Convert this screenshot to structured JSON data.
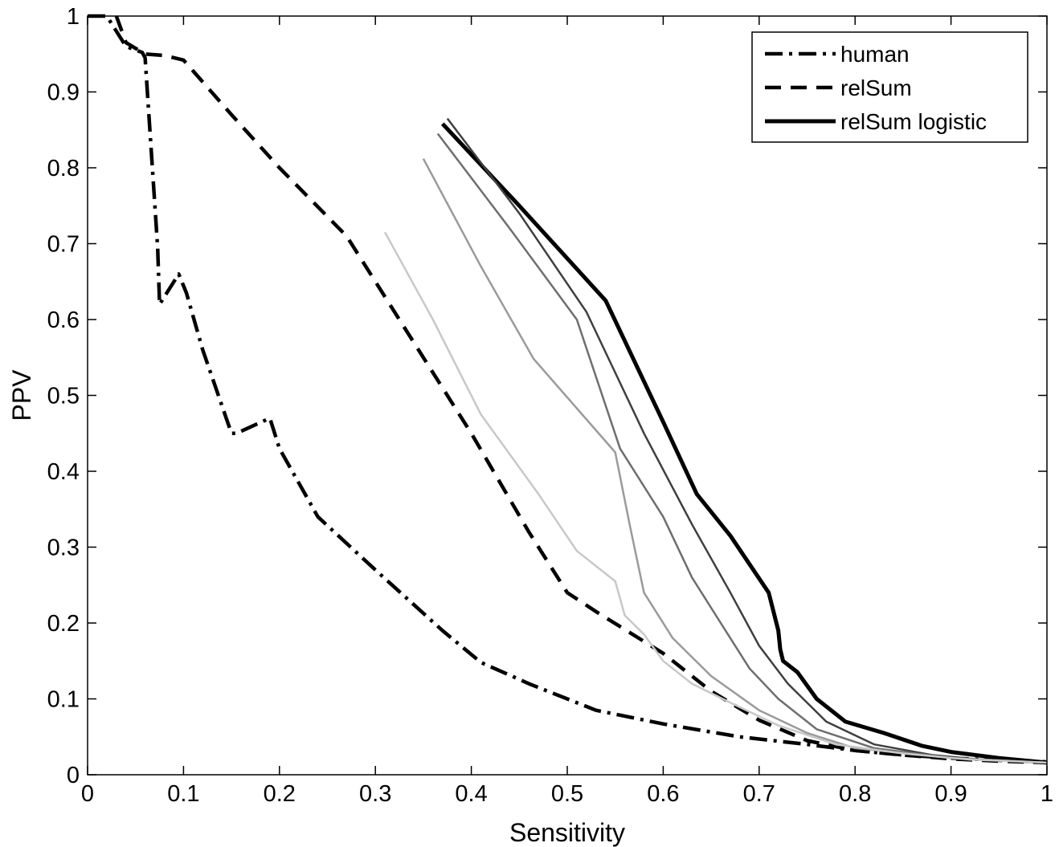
{
  "chart_data": {
    "type": "line",
    "xlabel": "Sensitivity",
    "ylabel": "PPV",
    "xlim": [
      0,
      1
    ],
    "ylim": [
      0,
      1
    ],
    "grid": false,
    "legend_position": "top-right",
    "x_ticks": [
      "0",
      "0.1",
      "0.2",
      "0.3",
      "0.4",
      "0.5",
      "0.6",
      "0.7",
      "0.8",
      "0.9",
      "1"
    ],
    "y_ticks": [
      "0",
      "0.1",
      "0.2",
      "0.3",
      "0.4",
      "0.5",
      "0.6",
      "0.7",
      "0.8",
      "0.9",
      "1"
    ],
    "series": [
      {
        "name": "human",
        "color": "#000000",
        "style": "dashdot",
        "in_legend": true,
        "x": [
          0.0,
          0.02,
          0.04,
          0.057,
          0.06,
          0.073,
          0.075,
          0.095,
          0.103,
          0.12,
          0.15,
          0.155,
          0.19,
          0.2,
          0.24,
          0.3,
          0.37,
          0.41,
          0.46,
          0.53,
          0.6,
          0.68,
          0.75,
          0.8,
          0.85,
          0.9,
          0.95,
          1.0
        ],
        "y": [
          1.0,
          1.0,
          0.96,
          0.952,
          0.945,
          0.695,
          0.62,
          0.66,
          0.635,
          0.56,
          0.45,
          0.45,
          0.47,
          0.43,
          0.34,
          0.27,
          0.19,
          0.148,
          0.12,
          0.085,
          0.067,
          0.05,
          0.04,
          0.032,
          0.026,
          0.022,
          0.019,
          0.017
        ]
      },
      {
        "name": "relSum",
        "color": "#000000",
        "style": "dashed",
        "in_legend": true,
        "x": [
          0.03,
          0.04,
          0.06,
          0.08,
          0.1,
          0.15,
          0.2,
          0.27,
          0.33,
          0.4,
          0.46,
          0.5,
          0.53,
          0.6,
          0.65,
          0.7,
          0.75,
          0.8,
          0.85,
          0.9,
          0.95,
          1.0
        ],
        "y": [
          1.0,
          0.965,
          0.95,
          0.948,
          0.942,
          0.87,
          0.8,
          0.71,
          0.59,
          0.45,
          0.32,
          0.24,
          0.215,
          0.16,
          0.11,
          0.072,
          0.045,
          0.032,
          0.026,
          0.021,
          0.018,
          0.016
        ]
      },
      {
        "name": "relSum logistic",
        "color": "#000000",
        "style": "solid-thick",
        "in_legend": true,
        "x": [
          0.37,
          0.45,
          0.54,
          0.6,
          0.635,
          0.67,
          0.71,
          0.72,
          0.722,
          0.725,
          0.74,
          0.76,
          0.79,
          0.83,
          0.87,
          0.9,
          0.95,
          1.0
        ],
        "y": [
          0.858,
          0.75,
          0.625,
          0.465,
          0.37,
          0.315,
          0.24,
          0.19,
          0.165,
          0.15,
          0.135,
          0.1,
          0.07,
          0.055,
          0.038,
          0.03,
          0.022,
          0.016
        ]
      },
      {
        "name": "",
        "color": "#3f3f3f",
        "style": "solid",
        "in_legend": false,
        "x": [
          0.375,
          0.45,
          0.52,
          0.58,
          0.63,
          0.67,
          0.7,
          0.73,
          0.77,
          0.82,
          0.88,
          0.93,
          1.0
        ],
        "y": [
          0.865,
          0.74,
          0.61,
          0.45,
          0.33,
          0.24,
          0.17,
          0.12,
          0.07,
          0.04,
          0.026,
          0.02,
          0.016
        ]
      },
      {
        "name": "",
        "color": "#6e6e6e",
        "style": "solid",
        "in_legend": false,
        "x": [
          0.365,
          0.44,
          0.51,
          0.555,
          0.6,
          0.63,
          0.66,
          0.69,
          0.72,
          0.76,
          0.82,
          0.9,
          1.0
        ],
        "y": [
          0.845,
          0.72,
          0.6,
          0.43,
          0.34,
          0.26,
          0.2,
          0.14,
          0.1,
          0.06,
          0.035,
          0.022,
          0.016
        ]
      },
      {
        "name": "",
        "color": "#9a9a9a",
        "style": "solid",
        "in_legend": false,
        "x": [
          0.35,
          0.41,
          0.465,
          0.55,
          0.565,
          0.58,
          0.61,
          0.65,
          0.7,
          0.75,
          0.8,
          0.9,
          1.0
        ],
        "y": [
          0.812,
          0.67,
          0.548,
          0.425,
          0.33,
          0.24,
          0.18,
          0.13,
          0.085,
          0.055,
          0.035,
          0.022,
          0.016
        ]
      },
      {
        "name": "",
        "color": "#c8c8c8",
        "style": "solid",
        "in_legend": false,
        "x": [
          0.31,
          0.36,
          0.41,
          0.47,
          0.51,
          0.55,
          0.56,
          0.58,
          0.6,
          0.63,
          0.67,
          0.72,
          0.78,
          0.85,
          0.92,
          1.0
        ],
        "y": [
          0.715,
          0.6,
          0.475,
          0.37,
          0.295,
          0.255,
          0.21,
          0.185,
          0.15,
          0.12,
          0.095,
          0.065,
          0.04,
          0.028,
          0.02,
          0.016
        ]
      }
    ]
  }
}
